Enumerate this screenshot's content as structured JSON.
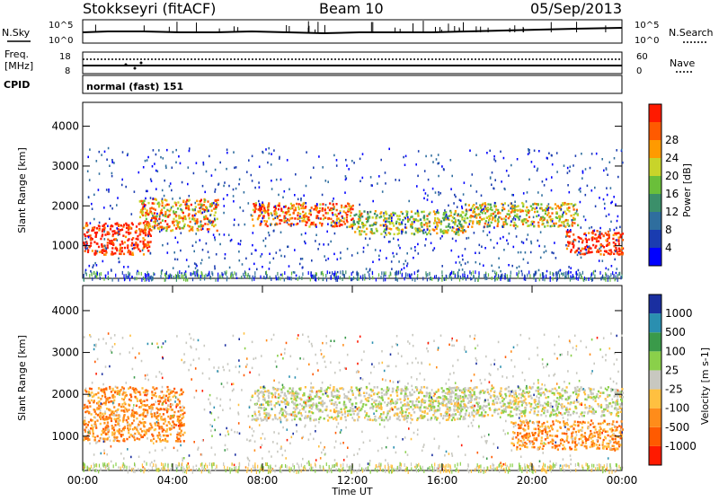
{
  "header": {
    "title": "Stokkseyri (fitACF)",
    "beam": "Beam 10",
    "date": "05/Sep/2013"
  },
  "noise_panel": {
    "left_label": "N.Sky",
    "right_label": "N.Search",
    "left_ticks": [
      "10^5",
      "10^0"
    ],
    "right_ticks": [
      "10^5",
      "10^0"
    ]
  },
  "freq_panel": {
    "left_label_line1": "Freq.",
    "left_label_line2": "[MHz]",
    "right_label": "Nave",
    "left_ticks": [
      "18",
      "8"
    ],
    "right_ticks": [
      "60",
      "0"
    ]
  },
  "cpid": {
    "label": "CPID",
    "value": "normal (fast) 151"
  },
  "chart_data": [
    {
      "type": "heatmap",
      "quantity": "Power",
      "ylabel": "Slant Range [km]",
      "xlabel": "",
      "ylim": [
        180,
        4600
      ],
      "yticks": [
        "1000",
        "2000",
        "3000",
        "4000"
      ],
      "colorbar_label": "Power [dB]",
      "colorbar_ticks": [
        "4",
        "8",
        "12",
        "16",
        "20",
        "24",
        "28"
      ],
      "colors": [
        "#0000ff",
        "#1a3cb0",
        "#2f6e9e",
        "#3b8f6a",
        "#6abf3a",
        "#c8d42a",
        "#ff9a00",
        "#ff5a00",
        "#ff1a00"
      ],
      "bands": [
        {
          "t0": 0.0,
          "t1": 3.0,
          "r0": 800,
          "r1": 1600,
          "level": 28
        },
        {
          "t0": 2.5,
          "t1": 6.0,
          "r0": 1400,
          "r1": 2200,
          "level": 22
        },
        {
          "t0": 7.5,
          "t1": 12.0,
          "r0": 1500,
          "r1": 2100,
          "level": 24
        },
        {
          "t0": 12.0,
          "t1": 17.0,
          "r0": 1300,
          "r1": 1900,
          "level": 18
        },
        {
          "t0": 17.0,
          "t1": 22.0,
          "r0": 1500,
          "r1": 2100,
          "level": 20
        },
        {
          "t0": 21.5,
          "t1": 24.0,
          "r0": 800,
          "r1": 1400,
          "level": 28
        }
      ]
    },
    {
      "type": "heatmap",
      "quantity": "Velocity",
      "ylabel": "Slant Range [km]",
      "xlabel": "Time UT",
      "xticks": [
        "00:00",
        "04:00",
        "08:00",
        "12:00",
        "16:00",
        "20:00",
        "00:00"
      ],
      "ylim": [
        180,
        4600
      ],
      "yticks": [
        "1000",
        "2000",
        "3000",
        "4000"
      ],
      "colorbar_label": "Velocity [m s-1]",
      "colorbar_ticks": [
        "1000",
        "500",
        "100",
        "25",
        "-25",
        "-100",
        "-500",
        "-1000"
      ],
      "colors": [
        "#1a2fa0",
        "#2a8fb0",
        "#3a9a4a",
        "#8ad04a",
        "#c8c8c0",
        "#ffc040",
        "#ff8c1a",
        "#ff5a00",
        "#ff1a00"
      ],
      "bands": [
        {
          "t0": 0.0,
          "t1": 4.5,
          "r0": 900,
          "r1": 2200,
          "level": -500
        },
        {
          "t0": 7.5,
          "t1": 17.0,
          "r0": 1400,
          "r1": 2200,
          "level": 0
        },
        {
          "t0": 16.0,
          "t1": 24.0,
          "r0": 1500,
          "r1": 2200,
          "level": 0
        },
        {
          "t0": 19.0,
          "t1": 24.0,
          "r0": 700,
          "r1": 1400,
          "level": -500
        }
      ]
    }
  ]
}
